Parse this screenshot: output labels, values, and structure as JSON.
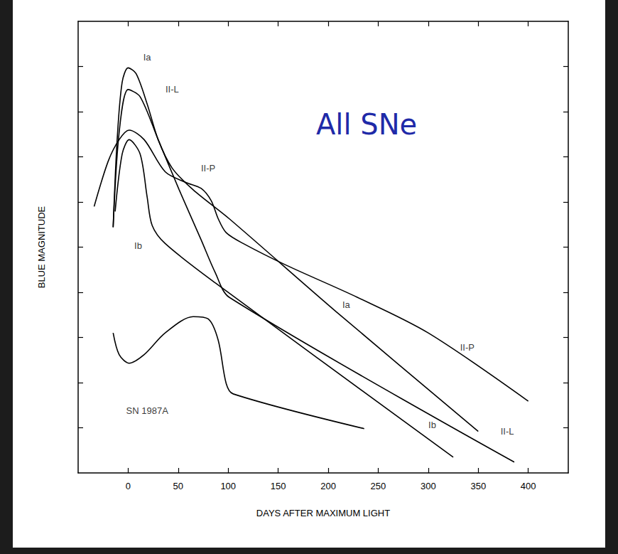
{
  "chart_data": {
    "type": "line",
    "title": "All SNe",
    "x_label": "DAYS AFTER MAXIMUM LIGHT",
    "y_label": "BLUE MAGNITUDE",
    "xlim": [
      -50,
      440
    ],
    "xticks": [
      0,
      50,
      100,
      150,
      200,
      250,
      300,
      350,
      400
    ],
    "ylim": [
      10,
      0
    ],
    "yticks": [
      1,
      2,
      3,
      4,
      5,
      6,
      7,
      8,
      9
    ],
    "tick_labels": "x",
    "grid": false,
    "series": [
      {
        "name": "Ia",
        "color": "#000000",
        "line_style": "solid",
        "x": [
          -15,
          -11,
          -6,
          0,
          8,
          19,
          30,
          44,
          65,
          101,
          208,
          350
        ],
        "values": [
          4.56,
          2.62,
          1.35,
          1.03,
          1.16,
          1.83,
          2.62,
          3.25,
          3.73,
          4.37,
          6.43,
          9.08
        ]
      },
      {
        "name": "II-L",
        "color": "#000000",
        "line_style": "solid",
        "x": [
          -15,
          -9,
          0,
          12,
          30,
          51,
          73,
          87,
          101,
          386
        ],
        "values": [
          4.56,
          2.46,
          1.51,
          1.67,
          2.62,
          3.73,
          4.84,
          5.56,
          6.11,
          9.76
        ]
      },
      {
        "name": "II-P",
        "color": "#000000",
        "line_style": "solid",
        "x": [
          -34,
          -20,
          -9,
          1,
          16,
          37,
          58,
          73,
          83,
          90,
          98,
          115,
          158,
          229,
          300,
          400
        ],
        "values": [
          4.1,
          3.1,
          2.62,
          2.41,
          2.62,
          3.33,
          3.57,
          3.7,
          3.97,
          4.37,
          4.68,
          4.92,
          5.4,
          6.11,
          6.9,
          8.41
        ]
      },
      {
        "name": "Ib",
        "color": "#000000",
        "line_style": "solid",
        "x": [
          -13,
          -6,
          1,
          12,
          19,
          24,
          37,
          87,
          325
        ],
        "values": [
          4.21,
          2.94,
          2.62,
          2.94,
          3.89,
          4.52,
          4.92,
          5.79,
          9.65
        ]
      },
      {
        "name": "SN 1987A",
        "color": "#000000",
        "line_style": "solid",
        "x": [
          -15,
          -9,
          1,
          16,
          37,
          65,
          80,
          90,
          98,
          105,
          236
        ],
        "values": [
          6.9,
          7.38,
          7.57,
          7.38,
          6.9,
          6.54,
          6.59,
          7.06,
          8.02,
          8.25,
          9.02
        ]
      }
    ],
    "annotations": [
      {
        "text": "Ia",
        "x": 19,
        "y": 0.79
      },
      {
        "text": "II-L",
        "x": 44,
        "y": 1.51
      },
      {
        "text": "II-P",
        "x": 80,
        "y": 3.25
      },
      {
        "text": "Ib",
        "x": 10,
        "y": 4.97
      },
      {
        "text": "Ia",
        "x": 218,
        "y": 6.27
      },
      {
        "text": "II-P",
        "x": 339,
        "y": 7.22
      },
      {
        "text": "Ib",
        "x": 304,
        "y": 8.94
      },
      {
        "text": "II-L",
        "x": 379,
        "y": 9.08
      },
      {
        "text": "SN 1987A",
        "x": 19,
        "y": 8.62
      }
    ]
  }
}
